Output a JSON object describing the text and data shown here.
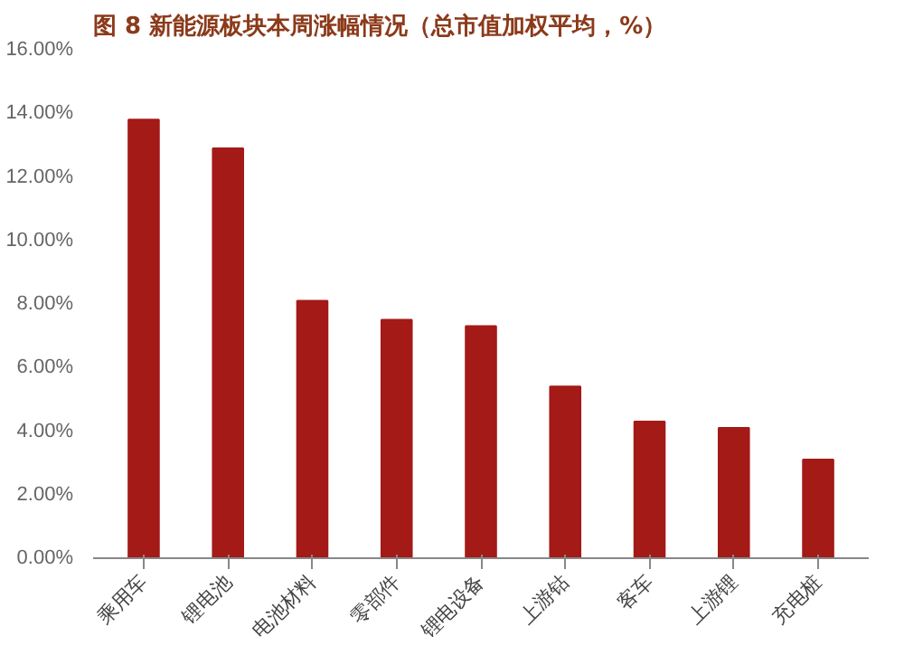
{
  "chart_data": {
    "type": "bar",
    "title": "图 8 新能源板块本周涨幅情况（总市值加权平均，%）",
    "categories": [
      "乘用车",
      "锂电池",
      "电池材料",
      "零部件",
      "锂电设备",
      "上游钴",
      "客车",
      "上游锂",
      "充电桩"
    ],
    "values": [
      13.8,
      12.9,
      8.1,
      7.5,
      7.3,
      5.4,
      4.3,
      4.1,
      3.1
    ],
    "color": "#a31a17",
    "ylim": [
      0,
      16
    ],
    "yticks": [
      {
        "value": 0,
        "label": "0.00%"
      },
      {
        "value": 2,
        "label": "2.00%"
      },
      {
        "value": 4,
        "label": "4.00%"
      },
      {
        "value": 6,
        "label": "6.00%"
      },
      {
        "value": 8,
        "label": "8.00%"
      },
      {
        "value": 10,
        "label": "10.00%"
      },
      {
        "value": 12,
        "label": "12.00%"
      },
      {
        "value": 14,
        "label": "14.00%"
      },
      {
        "value": 16,
        "label": "16.00%"
      }
    ],
    "grid": false
  }
}
